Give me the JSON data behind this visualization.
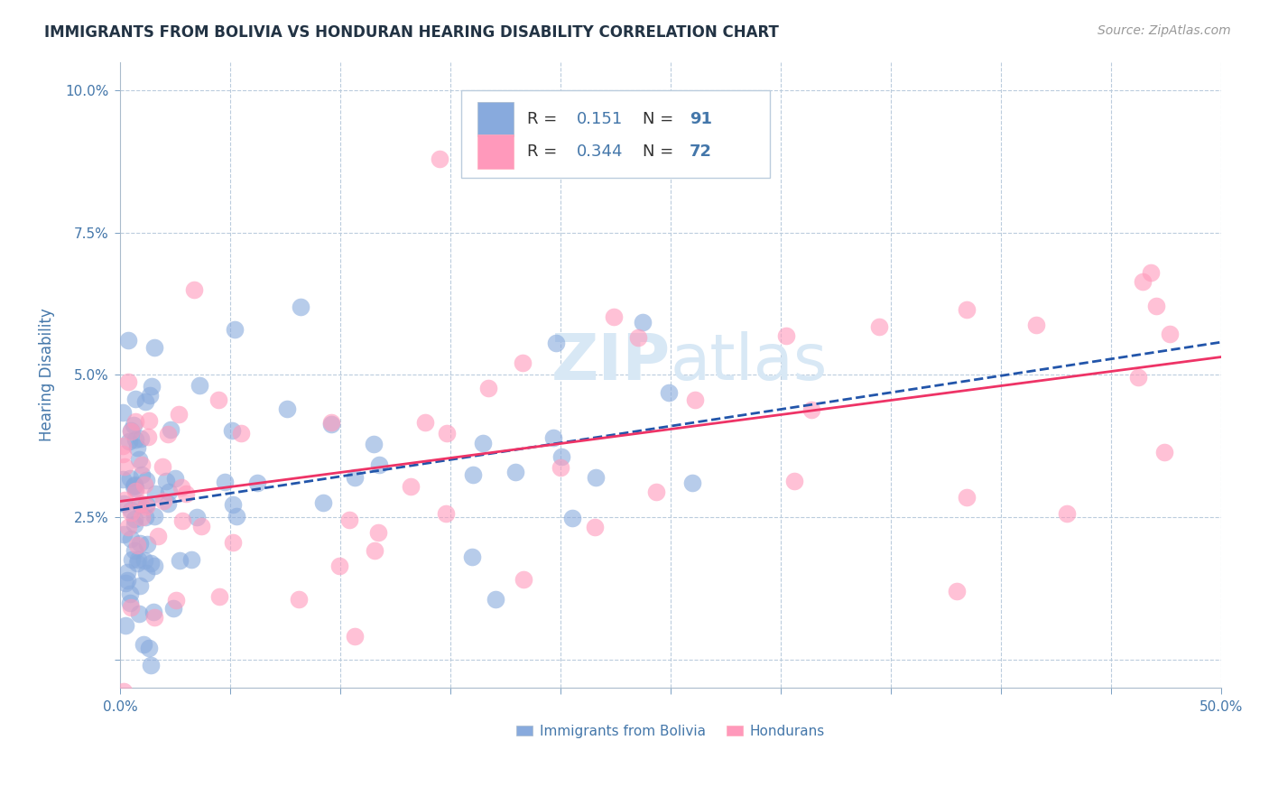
{
  "title": "IMMIGRANTS FROM BOLIVIA VS HONDURAN HEARING DISABILITY CORRELATION CHART",
  "source": "Source: ZipAtlas.com",
  "ylabel": "Hearing Disability",
  "xlim": [
    0.0,
    0.5
  ],
  "ylim": [
    -0.005,
    0.105
  ],
  "xticks": [
    0.0,
    0.05,
    0.1,
    0.15,
    0.2,
    0.25,
    0.3,
    0.35,
    0.4,
    0.45,
    0.5
  ],
  "yticks": [
    0.0,
    0.025,
    0.05,
    0.075,
    0.1
  ],
  "color_bolivia": "#88AADD",
  "color_honduras": "#FF99BB",
  "color_trendline_bolivia": "#2255AA",
  "color_trendline_honduras": "#EE3366",
  "background_color": "#FFFFFF",
  "title_color": "#223344",
  "tick_color": "#4477AA",
  "watermark_color": "#D8E8F5"
}
